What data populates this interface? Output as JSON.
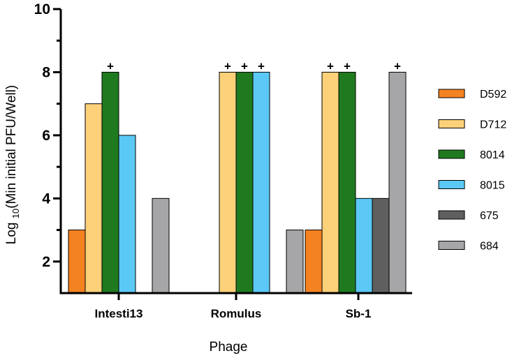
{
  "chart_data": {
    "type": "bar",
    "title": "",
    "xlabel": "Phage",
    "ylabel_main": "Log ",
    "ylabel_sub": "10",
    "ylabel_rest": "(Min initial PFU/Well)",
    "ylim": [
      1,
      10
    ],
    "yticks": [
      2,
      4,
      6,
      8,
      10
    ],
    "categories": [
      "Intesti13",
      "Romulus",
      "Sb-1"
    ],
    "series": [
      {
        "name": "D592",
        "color": "#f58220",
        "values": [
          3,
          null,
          3
        ],
        "marked": [
          false,
          false,
          false
        ]
      },
      {
        "name": "D712",
        "color": "#fdd17a",
        "values": [
          7,
          8,
          8
        ],
        "marked": [
          false,
          true,
          true
        ]
      },
      {
        "name": "8014",
        "color": "#1f7a1f",
        "values": [
          8,
          8,
          8
        ],
        "marked": [
          true,
          true,
          true
        ]
      },
      {
        "name": "8015",
        "color": "#5bc8f5",
        "values": [
          6,
          8,
          4
        ],
        "marked": [
          false,
          true,
          false
        ]
      },
      {
        "name": "675",
        "color": "#5f5f5f",
        "values": [
          null,
          null,
          4
        ],
        "marked": [
          false,
          false,
          false
        ]
      },
      {
        "name": "684",
        "color": "#a6a6a8",
        "values": [
          4,
          3,
          8
        ],
        "marked": [
          false,
          false,
          true
        ]
      }
    ],
    "marker_symbol": "+",
    "legend_position": "right"
  }
}
